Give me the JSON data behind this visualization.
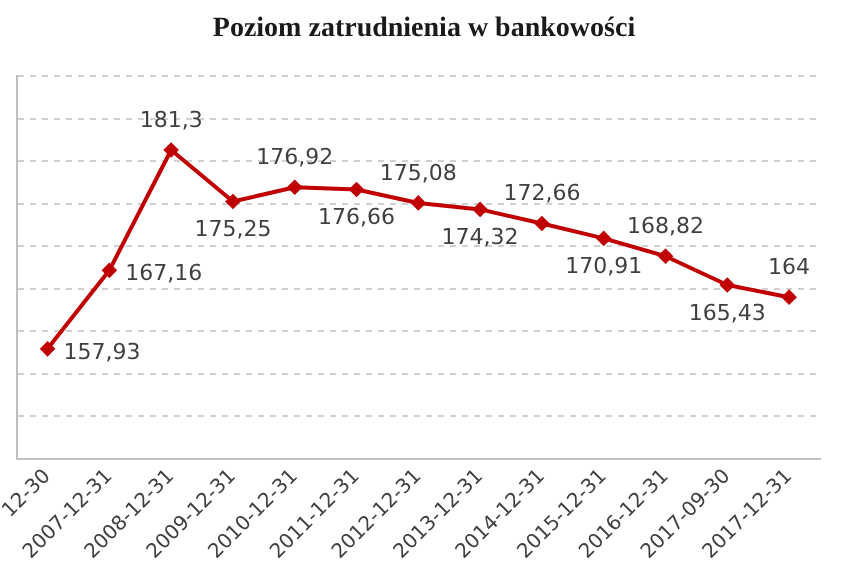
{
  "chart_data": {
    "type": "line",
    "title": "Poziom zatrudnienia w bankowości",
    "categories": [
      "12-30",
      "2007-12-31",
      "2008-12-31",
      "2009-12-31",
      "2010-12-31",
      "2011-12-31",
      "2012-12-31",
      "2013-12-31",
      "2014-12-31",
      "2015-12-31",
      "2016-12-31",
      "2017-09-30",
      "2017-12-31"
    ],
    "series": [
      {
        "color": "#c00000",
        "values": [
          157.93,
          167.16,
          181.3,
          175.25,
          176.92,
          176.66,
          175.08,
          174.32,
          172.66,
          170.91,
          168.82,
          165.43,
          164
        ],
        "value_labels": [
          "157,93",
          "167,16",
          "181,3",
          "175,25",
          "176,92",
          "176,66",
          "175,08",
          "174,32",
          "172,66",
          "170,91",
          "168,82",
          "165,43",
          "164"
        ]
      }
    ],
    "ylim": [
      145,
      190
    ],
    "yticks": [
      {
        "value": 145,
        "label": null
      },
      {
        "value": 150,
        "label": null
      },
      {
        "value": 155,
        "label": null
      },
      {
        "value": 160,
        "label": null
      },
      {
        "value": 165,
        "label": null
      },
      {
        "value": 170,
        "label": null
      },
      {
        "value": 175,
        "label": null
      },
      {
        "value": 180,
        "label": null
      },
      {
        "value": 185,
        "label": null
      },
      {
        "value": 190,
        "label": null
      }
    ],
    "tick_labels": "x",
    "grid": "y",
    "legend": false,
    "marker": "diamond",
    "line_style": "solid"
  }
}
